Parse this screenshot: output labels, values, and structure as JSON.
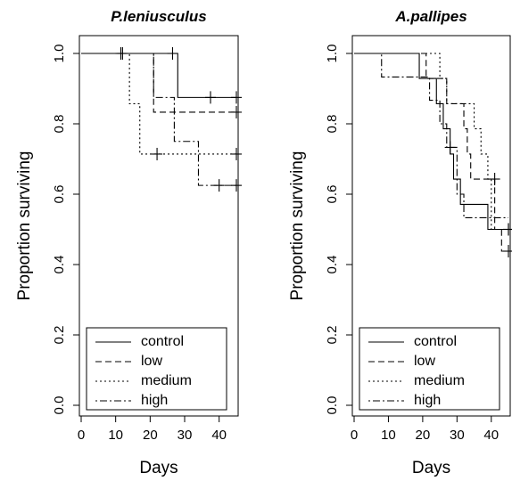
{
  "chart_data": [
    {
      "type": "line",
      "subtype": "kaplan-meier step",
      "title": "P.leniusculus",
      "xlabel": "Days",
      "ylabel": "Proportion surviving",
      "xlim": [
        0,
        45
      ],
      "ylim": [
        0,
        1
      ],
      "xticks": [
        "0",
        "10",
        "20",
        "30",
        "40"
      ],
      "yticks": [
        "0.0",
        "0.2",
        "0.4",
        "0.6",
        "0.8",
        "1.0"
      ],
      "legend_position": "bottom-left",
      "series": [
        {
          "name": "control",
          "dash": "solid",
          "steps": [
            [
              0,
              1.0
            ],
            [
              28,
              0.875
            ],
            [
              45,
              0.875
            ]
          ],
          "censor": [
            [
              26.5,
              1.0
            ],
            [
              37.5,
              0.875
            ],
            [
              45,
              0.875
            ]
          ]
        },
        {
          "name": "low",
          "dash": "dashed",
          "steps": [
            [
              0,
              1.0
            ],
            [
              21,
              0.833
            ],
            [
              45,
              0.833
            ]
          ],
          "censor": [
            [
              45,
              0.833
            ]
          ]
        },
        {
          "name": "medium",
          "dash": "dotted",
          "steps": [
            [
              0,
              1.0
            ],
            [
              14,
              0.857
            ],
            [
              17,
              0.714
            ],
            [
              45,
              0.714
            ]
          ],
          "censor": [
            [
              11.5,
              1.0
            ],
            [
              22,
              0.714
            ],
            [
              45,
              0.714
            ]
          ]
        },
        {
          "name": "high",
          "dash": "dotdash",
          "steps": [
            [
              0,
              1.0
            ],
            [
              21,
              0.875
            ],
            [
              27,
              0.75
            ],
            [
              34,
              0.625
            ],
            [
              45,
              0.625
            ]
          ],
          "censor": [
            [
              12,
              1.0
            ],
            [
              40,
              0.625
            ],
            [
              45,
              0.625
            ]
          ]
        }
      ]
    },
    {
      "type": "line",
      "subtype": "kaplan-meier step",
      "title": "A.pallipes",
      "xlabel": "Days",
      "ylabel": "Proportion surviving",
      "xlim": [
        0,
        45
      ],
      "ylim": [
        0,
        1
      ],
      "xticks": [
        "0",
        "10",
        "20",
        "30",
        "40"
      ],
      "yticks": [
        "0.0",
        "0.2",
        "0.4",
        "0.6",
        "0.8",
        "1.0"
      ],
      "legend_position": "bottom-left",
      "series": [
        {
          "name": "control",
          "dash": "solid",
          "steps": [
            [
              0,
              1.0
            ],
            [
              19,
              0.929
            ],
            [
              24,
              0.857
            ],
            [
              26,
              0.786
            ],
            [
              28,
              0.714
            ],
            [
              29,
              0.643
            ],
            [
              31,
              0.571
            ],
            [
              39,
              0.5
            ],
            [
              45,
              0.5
            ]
          ],
          "censor": [
            [
              45,
              0.5
            ]
          ]
        },
        {
          "name": "low",
          "dash": "dashed",
          "steps": [
            [
              0,
              1.0
            ],
            [
              21,
              0.929
            ],
            [
              27,
              0.857
            ],
            [
              32,
              0.786
            ],
            [
              33,
              0.714
            ],
            [
              34,
              0.643
            ],
            [
              41,
              0.5
            ],
            [
              43,
              0.438
            ],
            [
              45,
              0.438
            ]
          ],
          "censor": [
            [
              45,
              0.438
            ]
          ]
        },
        {
          "name": "medium",
          "dash": "dotted",
          "steps": [
            [
              0,
              1.0
            ],
            [
              25,
              0.929
            ],
            [
              27,
              0.857
            ],
            [
              35,
              0.786
            ],
            [
              37,
              0.714
            ],
            [
              39,
              0.643
            ],
            [
              40,
              0.5
            ],
            [
              44,
              0.5
            ],
            [
              45,
              0.5
            ]
          ],
          "censor": [
            [
              41,
              0.643
            ],
            [
              45,
              0.5
            ]
          ]
        },
        {
          "name": "high",
          "dash": "dotdash",
          "steps": [
            [
              0,
              1.0
            ],
            [
              8,
              0.933
            ],
            [
              22,
              0.867
            ],
            [
              25,
              0.8
            ],
            [
              27,
              0.733
            ],
            [
              30,
              0.6
            ],
            [
              32,
              0.533
            ],
            [
              35,
              0.533
            ],
            [
              45,
              0.533
            ]
          ],
          "censor": [
            [
              28,
              0.733
            ]
          ]
        }
      ]
    }
  ]
}
